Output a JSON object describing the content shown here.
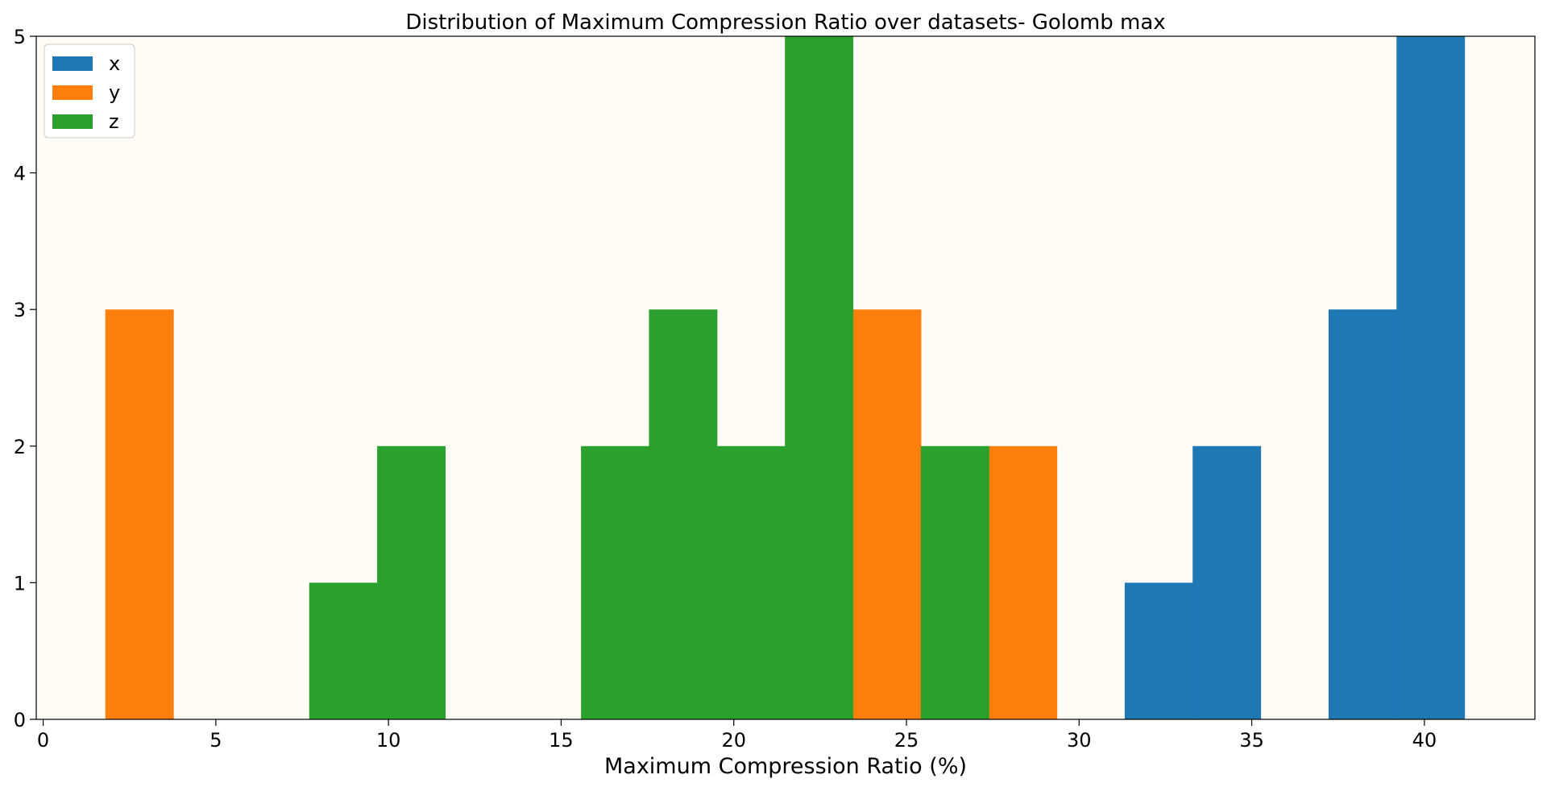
{
  "chart_data": {
    "type": "bar",
    "title": "Distribution of Maximum Compression Ratio over datasets- Golomb max",
    "xlabel": "Maximum Compression Ratio (%)",
    "ylabel": "",
    "xlim": [
      -0.2,
      43.2
    ],
    "ylim": [
      0,
      5
    ],
    "xticks": [
      0,
      5,
      10,
      15,
      20,
      25,
      30,
      35,
      40
    ],
    "yticks": [
      0,
      1,
      2,
      3,
      4,
      5
    ],
    "background": "#fffcf5",
    "legend": {
      "placement": "top-left"
    },
    "bin_edges": [
      1.8,
      3.768,
      5.736,
      7.704,
      9.672,
      11.64,
      13.608,
      15.576,
      17.544,
      19.512,
      21.48,
      23.448,
      25.416,
      27.384,
      29.352,
      31.32,
      33.288,
      35.256,
      37.224,
      39.192,
      41.16
    ],
    "series": [
      {
        "name": "x",
        "color": "#1f77b4",
        "values": [
          0,
          0,
          0,
          0,
          0,
          0,
          0,
          0,
          1,
          0,
          0,
          0,
          0,
          0,
          0,
          1,
          2,
          0,
          3,
          5
        ]
      },
      {
        "name": "y",
        "color": "#ff7f0e",
        "values": [
          3,
          0,
          0,
          0,
          0,
          0,
          0,
          0,
          0,
          1,
          2,
          3,
          1,
          2,
          0,
          0,
          0,
          0,
          0,
          0
        ]
      },
      {
        "name": "z",
        "color": "#2ca02c",
        "values": [
          0,
          0,
          0,
          1,
          2,
          0,
          0,
          2,
          3,
          2,
          5,
          0,
          2,
          0,
          0,
          0,
          0,
          0,
          0,
          0
        ]
      }
    ]
  }
}
